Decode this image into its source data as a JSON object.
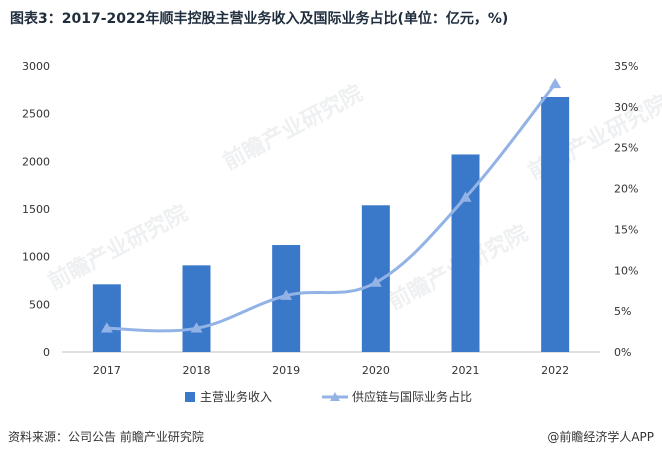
{
  "title": "图表3：2017-2022年顺丰控股主营业务收入及国际业务占比(单位：亿元，%)",
  "footer": {
    "source": "资料来源：公司公告 前瞻产业研究院",
    "brand": "@前瞻经济学人APP"
  },
  "watermark": "前瞻产业研究院",
  "colors": {
    "bar": "#3a78c9",
    "line": "#93b3e6",
    "axis": "#bfbfbf",
    "text": "#333333"
  },
  "chart_data": {
    "type": "bar",
    "categories": [
      "2017",
      "2018",
      "2019",
      "2020",
      "2021",
      "2022"
    ],
    "series": [
      {
        "name": "主营业务收入",
        "type": "bar",
        "axis": "left",
        "values": [
          710,
          909,
          1122,
          1539,
          2072,
          2675
        ]
      },
      {
        "name": "供应链与国际业务占比",
        "type": "line",
        "axis": "right",
        "values": [
          2.9,
          2.9,
          6.9,
          8.5,
          18.9,
          32.8
        ]
      }
    ],
    "y_left": {
      "min": 0,
      "max": 3000,
      "ticks": [
        "0",
        "500",
        "1000",
        "1500",
        "2000",
        "2500",
        "3000"
      ]
    },
    "y_right": {
      "min": 0,
      "max": 35,
      "ticks": [
        "0%",
        "5%",
        "10%",
        "15%",
        "20%",
        "25%",
        "30%",
        "35%"
      ]
    },
    "grid": false,
    "legend_position": "bottom"
  }
}
